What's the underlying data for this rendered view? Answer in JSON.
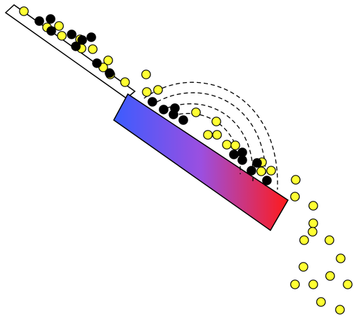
{
  "diagram": {
    "colors": {
      "background": "#ffffff",
      "outline": "#000000",
      "chute_fill": "#ffffff",
      "magnet_gradient_start": "#3b5cff",
      "magnet_gradient_mid": "#9b4fe0",
      "magnet_gradient_end": "#ff1a1a",
      "metal_particle": "#000000",
      "nonmetal_particle": "#ffff33"
    },
    "components": [
      "inclined-chute",
      "magnetic-drum",
      "field-lines",
      "metal-particles",
      "nonmetal-particles"
    ],
    "field_line_count": 4,
    "field_line_style": "dashed",
    "particle_counts": {
      "metal": 20,
      "nonmetal": 38
    }
  }
}
